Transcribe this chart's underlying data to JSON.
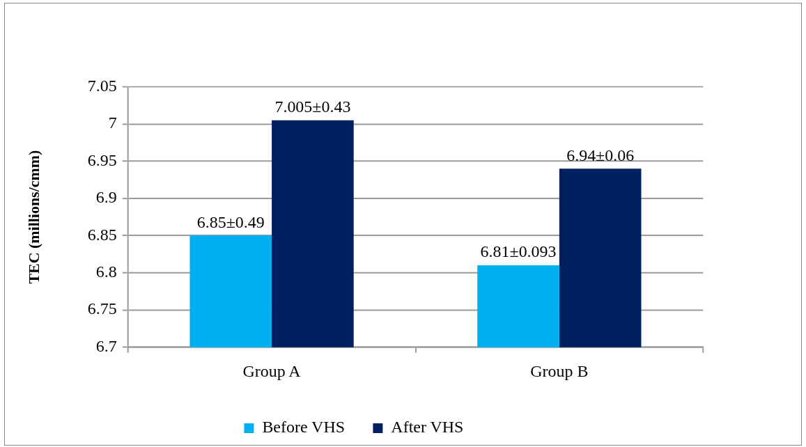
{
  "chart_data": {
    "type": "bar",
    "categories": [
      "Group A",
      "Group B"
    ],
    "ylabel": "TEC (millions/cmm)",
    "ylim": [
      6.7,
      7.05
    ],
    "yticks": [
      6.7,
      6.75,
      6.8,
      6.85,
      6.9,
      6.95,
      7,
      7.05
    ],
    "grid": "y",
    "legend": "bottom",
    "series": [
      {
        "name": "Before VHS",
        "color": "#00b0f0",
        "values": [
          6.85,
          6.81
        ],
        "value_labels": [
          "6.85±0.49",
          "6.81±0.093"
        ]
      },
      {
        "name": "After VHS",
        "color": "#002060",
        "values": [
          7.005,
          6.94
        ],
        "value_labels": [
          "7.005±0.43",
          "6.94±0.06"
        ]
      }
    ]
  }
}
